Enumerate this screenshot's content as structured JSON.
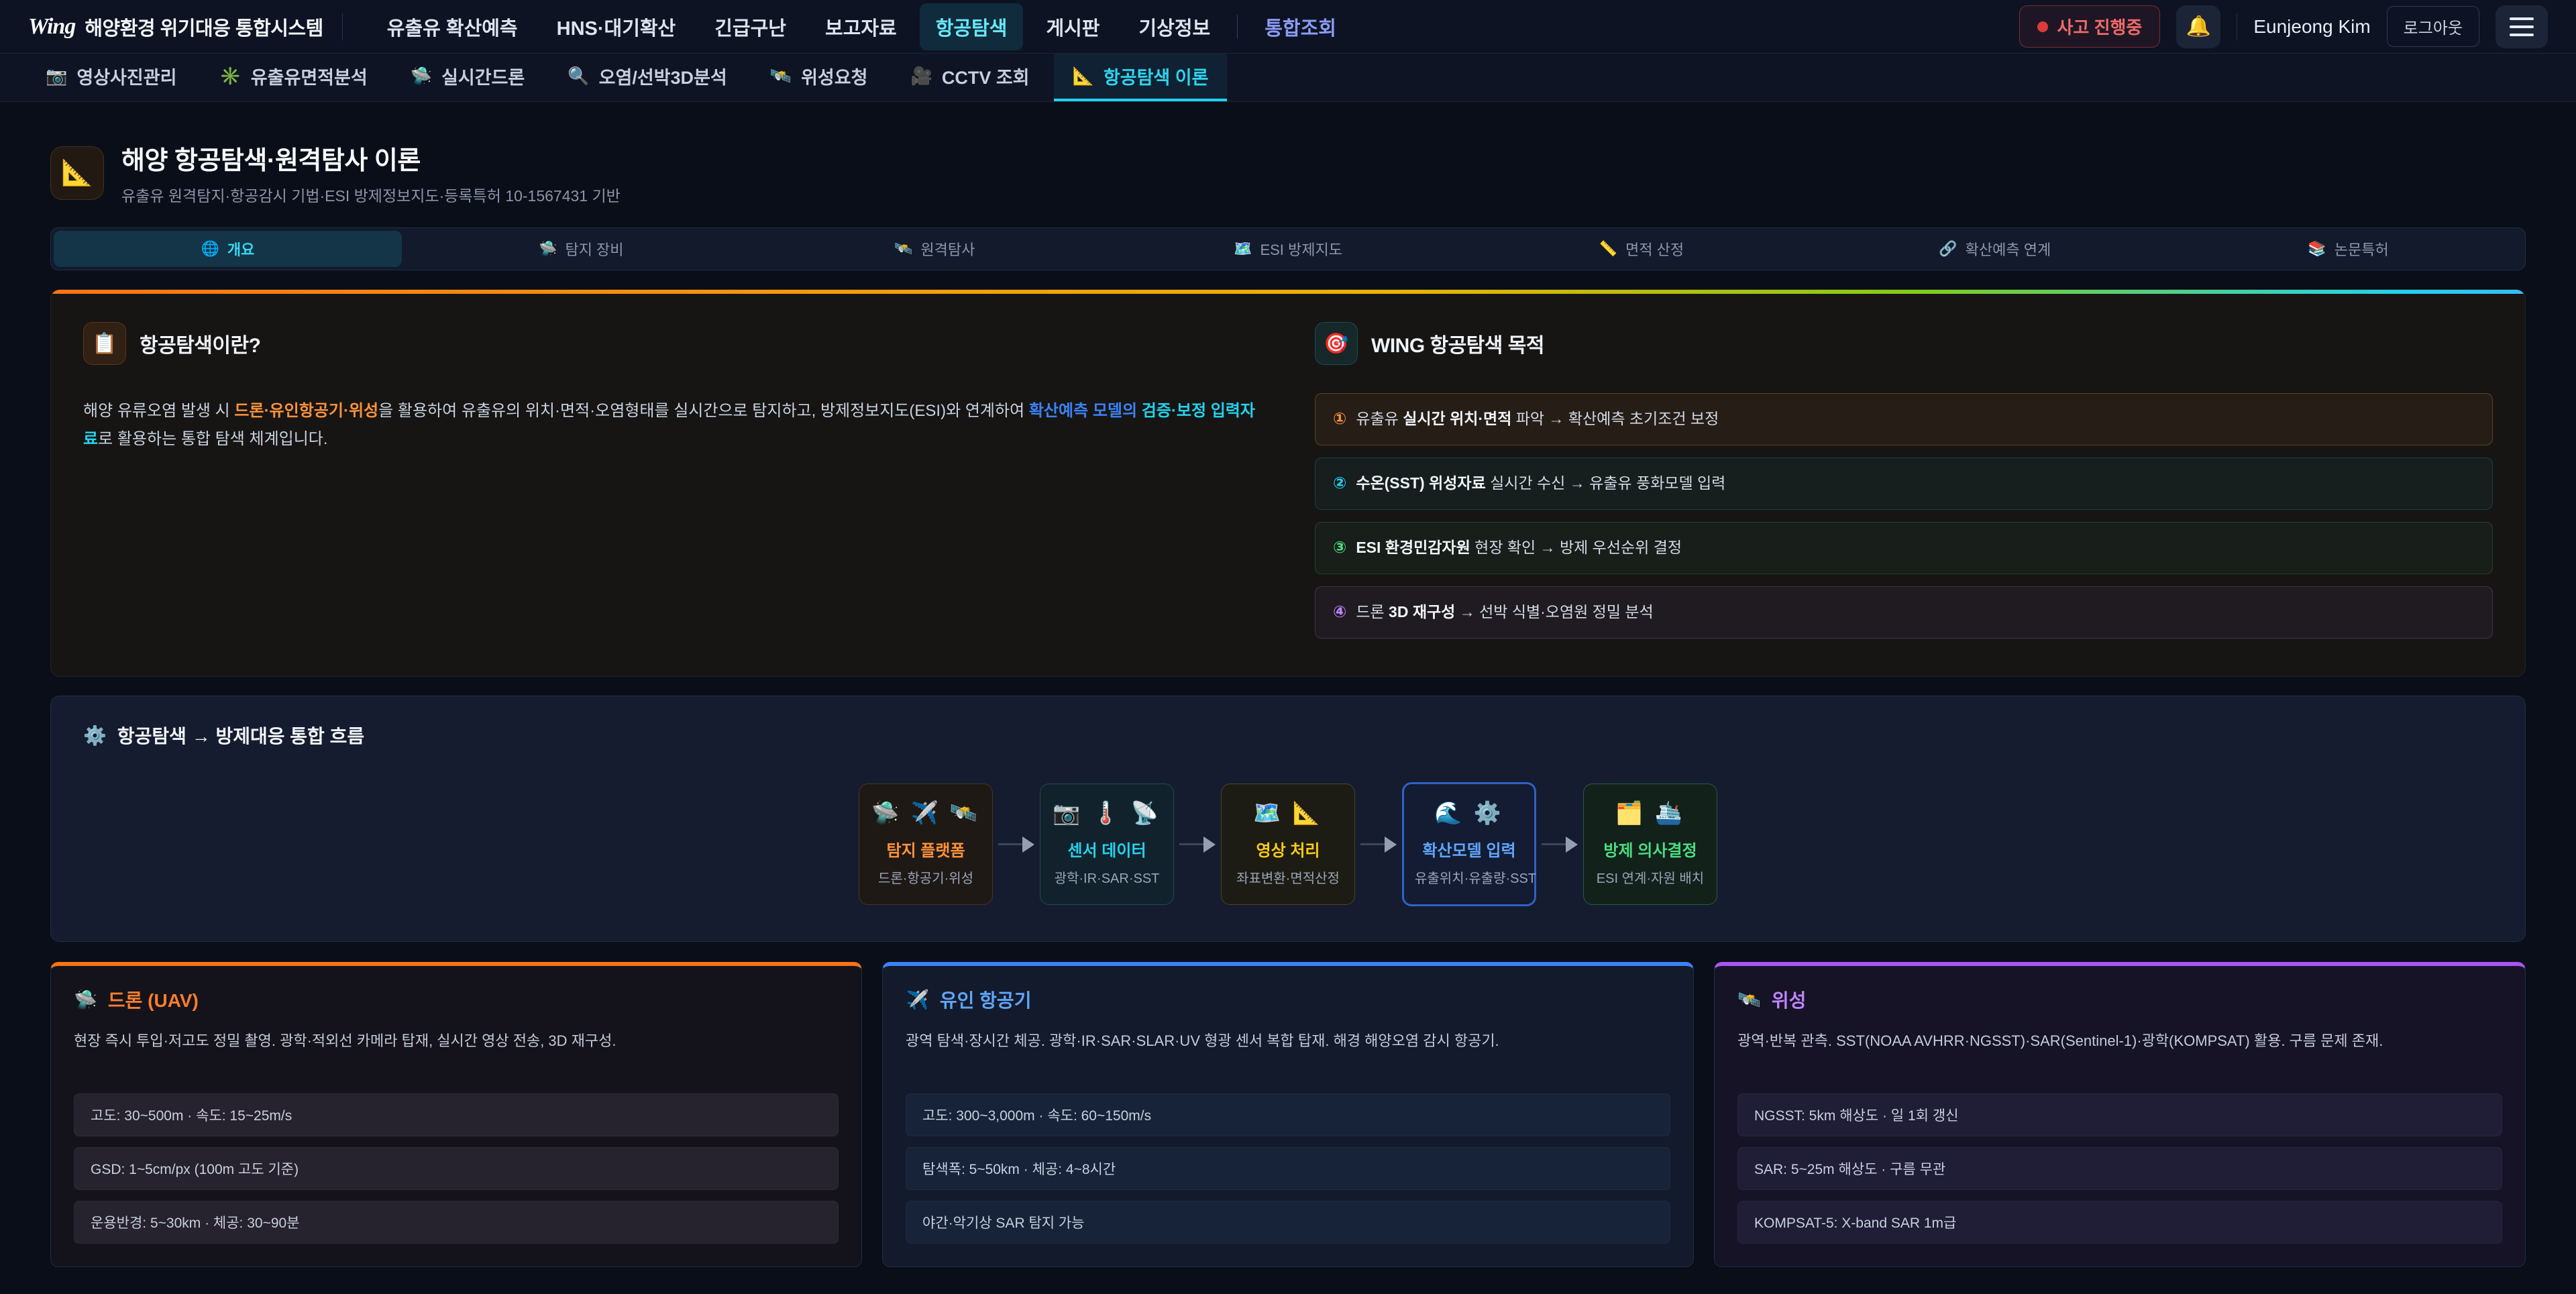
{
  "header": {
    "logo": "Wing",
    "app_title": "해양환경 위기대응 통합시스템",
    "nav": [
      {
        "label": "유출유 확산예측"
      },
      {
        "label": "HNS·대기확산"
      },
      {
        "label": "긴급구난"
      },
      {
        "label": "보고자료"
      },
      {
        "label": "항공탐색",
        "active": true
      },
      {
        "label": "게시판"
      },
      {
        "label": "기상정보"
      },
      {
        "label": "통합조회",
        "accent": true
      }
    ],
    "incident_badge": "사고 진행중",
    "bell_icon": "🔔",
    "user_name": "Eunjeong Kim",
    "logout_label": "로그아웃"
  },
  "subnav": [
    {
      "icon": "📷",
      "label": "영상사진관리"
    },
    {
      "icon": "✳️",
      "label": "유출유면적분석"
    },
    {
      "icon": "🛸",
      "label": "실시간드론"
    },
    {
      "icon": "🔍",
      "label": "오염/선박3D분석"
    },
    {
      "icon": "🛰️",
      "label": "위성요청"
    },
    {
      "icon": "🎥",
      "label": "CCTV 조회"
    },
    {
      "icon": "📐",
      "label": "항공탐색 이론",
      "active": true
    }
  ],
  "page": {
    "icon": "📐",
    "title": "해양 항공탐색·원격탐사 이론",
    "subtitle": "유출유 원격탐지·항공감시 기법·ESI 방제정보지도·등록특허 10-1567431 기반"
  },
  "tabs": [
    {
      "icon": "🌐",
      "label": "개요",
      "active": true
    },
    {
      "icon": "🛸",
      "label": "탐지 장비"
    },
    {
      "icon": "🛰️",
      "label": "원격탐사"
    },
    {
      "icon": "🗺️",
      "label": "ESI 방제지도"
    },
    {
      "icon": "📏",
      "label": "면적 산정"
    },
    {
      "icon": "🔗",
      "label": "확산예측 연계"
    },
    {
      "icon": "📚",
      "label": "논문특허"
    }
  ],
  "overview": {
    "what": {
      "icon": "📋",
      "title": "항공탐색이란?",
      "text_segments": [
        {
          "t": "해양 유류오염 발생 시 "
        },
        {
          "t": "드론·유인항공기·위성",
          "c": "orange"
        },
        {
          "t": "을 활용하여 유출유의 위치·면적·오염형태를 실시간으로 탐지하고, 방제정보지도(ESI)와 연계하여 "
        },
        {
          "t": "확산예측 모델의 ",
          "c": "blue"
        },
        {
          "t": "검증·보정 입력자료",
          "c": "cyan"
        },
        {
          "t": "로 활용하는 통합 탐색 체계입니다."
        }
      ]
    },
    "purpose": {
      "icon": "🎯",
      "title": "WING 항공탐색 목적",
      "items": [
        {
          "num": "①",
          "segments": [
            {
              "t": "유출유 "
            },
            {
              "t": "실시간 위치·면적",
              "c": "strong"
            },
            {
              "t": " 파악 → 확산예측 초기조건 보정"
            }
          ]
        },
        {
          "num": "②",
          "segments": [
            {
              "t": "수온(SST) 위성자료",
              "c": "strong"
            },
            {
              "t": " 실시간 수신 → 유출유 풍화모델 입력"
            }
          ]
        },
        {
          "num": "③",
          "segments": [
            {
              "t": "ESI 환경민감자원",
              "c": "strong"
            },
            {
              "t": " 현장 확인 → 방제 우선순위 결정"
            }
          ]
        },
        {
          "num": "④",
          "segments": [
            {
              "t": "드론 "
            },
            {
              "t": "3D 재구성",
              "c": "strong"
            },
            {
              "t": " → 선박 식별·오염원 정밀 분석"
            }
          ]
        }
      ]
    }
  },
  "flow": {
    "icon": "⚙️",
    "title": "항공탐색 → 방제대응 통합 흐름",
    "steps": [
      {
        "icons": "🛸 ✈️ 🛰️",
        "title": "탐지 플랫폼",
        "subtitle": "드론·항공기·위성"
      },
      {
        "icons": "📷 🌡️ 📡",
        "title": "센서 데이터",
        "subtitle": "광학·IR·SAR·SST"
      },
      {
        "icons": "🗺️ 📐",
        "title": "영상 처리",
        "subtitle": "좌표변환·면적산정"
      },
      {
        "icons": "🌊 ⚙️",
        "title": "확산모델 입력",
        "subtitle": "유출위치·유출량·SST"
      },
      {
        "icons": "🗂️ 🛳️",
        "title": "방제 의사결정",
        "subtitle": "ESI 연계·자원 배치"
      }
    ]
  },
  "cards": [
    {
      "icon": "🛸",
      "title": "드론 (UAV)",
      "desc": "현장 즉시 투입·저고도 정밀 촬영. 광학·적외선 카메라 탑재, 실시간 영상 전송, 3D 재구성.",
      "specs": [
        "고도: 30~500m · 속도: 15~25m/s",
        "GSD: 1~5cm/px (100m 고도 기준)",
        "운용반경: 5~30km · 체공: 30~90분"
      ]
    },
    {
      "icon": "✈️",
      "title": "유인 항공기",
      "desc": "광역 탐색·장시간 체공. 광학·IR·SAR·SLAR·UV 형광 센서 복합 탑재. 해경 해양오염 감시 항공기.",
      "specs": [
        "고도: 300~3,000m · 속도: 60~150m/s",
        "탐색폭: 5~50km · 체공: 4~8시간",
        "야간·악기상 SAR 탐지 가능"
      ]
    },
    {
      "icon": "🛰️",
      "title": "위성",
      "desc": "광역·반복 관측. SST(NOAA AVHRR·NGSST)·SAR(Sentinel-1)·광학(KOMPSAT) 활용. 구름 문제 존재.",
      "specs": [
        "NGSST: 5km 해상도 · 일 1회 갱신",
        "SAR: 5~25m 해상도 · 구름 무관",
        "KOMPSAT-5: X-band SAR 1m급"
      ]
    }
  ]
}
